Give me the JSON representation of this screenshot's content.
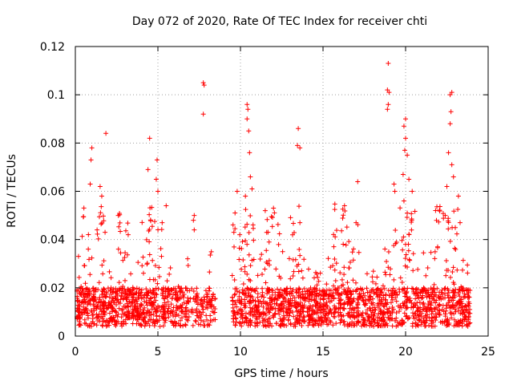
{
  "chart_data": {
    "type": "scatter",
    "title": "Day 072 of 2020, Rate Of TEC Index for receiver chti",
    "xlabel": "GPS time / hours",
    "ylabel": "ROTI / TECUs",
    "xlim": [
      0,
      25
    ],
    "ylim": [
      0,
      0.12
    ],
    "x_ticks": [
      0,
      5,
      10,
      15,
      20,
      25
    ],
    "x_tick_labels": [
      "0",
      "5",
      "10",
      "15",
      "20",
      "25"
    ],
    "y_ticks": [
      0,
      0.02,
      0.04,
      0.06,
      0.08,
      0.1,
      0.12
    ],
    "y_tick_labels": [
      "0",
      "0.02",
      "0.04",
      "0.06",
      "0.08",
      "0.1",
      "0.12"
    ],
    "grid": true,
    "marker": "+",
    "color": "#ff0000",
    "baseline_range": [
      0.004,
      0.02
    ],
    "gaps": [
      [
        8.5,
        9.5
      ]
    ],
    "notable_points": [
      {
        "x": 1.0,
        "y": 0.078
      },
      {
        "x": 0.95,
        "y": 0.073
      },
      {
        "x": 0.9,
        "y": 0.063
      },
      {
        "x": 1.5,
        "y": 0.062
      },
      {
        "x": 1.6,
        "y": 0.058
      },
      {
        "x": 1.85,
        "y": 0.084
      },
      {
        "x": 1.8,
        "y": 0.043
      },
      {
        "x": 2.6,
        "y": 0.05
      },
      {
        "x": 3.2,
        "y": 0.042
      },
      {
        "x": 4.5,
        "y": 0.082
      },
      {
        "x": 4.4,
        "y": 0.069
      },
      {
        "x": 4.95,
        "y": 0.073
      },
      {
        "x": 4.9,
        "y": 0.065
      },
      {
        "x": 5.0,
        "y": 0.06
      },
      {
        "x": 5.5,
        "y": 0.054
      },
      {
        "x": 7.2,
        "y": 0.05
      },
      {
        "x": 7.15,
        "y": 0.048
      },
      {
        "x": 7.2,
        "y": 0.044
      },
      {
        "x": 7.75,
        "y": 0.105
      },
      {
        "x": 7.8,
        "y": 0.104
      },
      {
        "x": 7.75,
        "y": 0.092
      },
      {
        "x": 9.6,
        "y": 0.043
      },
      {
        "x": 9.8,
        "y": 0.06
      },
      {
        "x": 10.4,
        "y": 0.096
      },
      {
        "x": 10.45,
        "y": 0.094
      },
      {
        "x": 10.4,
        "y": 0.09
      },
      {
        "x": 10.5,
        "y": 0.085
      },
      {
        "x": 10.55,
        "y": 0.076
      },
      {
        "x": 10.6,
        "y": 0.066
      },
      {
        "x": 10.3,
        "y": 0.058
      },
      {
        "x": 10.7,
        "y": 0.061
      },
      {
        "x": 11.5,
        "y": 0.052
      },
      {
        "x": 12.0,
        "y": 0.053
      },
      {
        "x": 13.5,
        "y": 0.086
      },
      {
        "x": 13.45,
        "y": 0.079
      },
      {
        "x": 13.6,
        "y": 0.078
      },
      {
        "x": 13.6,
        "y": 0.047
      },
      {
        "x": 16.3,
        "y": 0.054
      },
      {
        "x": 17.1,
        "y": 0.064
      },
      {
        "x": 17.0,
        "y": 0.047
      },
      {
        "x": 18.95,
        "y": 0.113
      },
      {
        "x": 18.9,
        "y": 0.102
      },
      {
        "x": 19.0,
        "y": 0.101
      },
      {
        "x": 18.95,
        "y": 0.096
      },
      {
        "x": 18.9,
        "y": 0.094
      },
      {
        "x": 19.3,
        "y": 0.063
      },
      {
        "x": 19.35,
        "y": 0.06
      },
      {
        "x": 20.0,
        "y": 0.09
      },
      {
        "x": 19.9,
        "y": 0.087
      },
      {
        "x": 20.0,
        "y": 0.082
      },
      {
        "x": 19.95,
        "y": 0.077
      },
      {
        "x": 20.1,
        "y": 0.075
      },
      {
        "x": 19.85,
        "y": 0.067
      },
      {
        "x": 20.2,
        "y": 0.065
      },
      {
        "x": 20.4,
        "y": 0.06
      },
      {
        "x": 19.9,
        "y": 0.056
      },
      {
        "x": 20.1,
        "y": 0.051
      },
      {
        "x": 22.7,
        "y": 0.1
      },
      {
        "x": 22.8,
        "y": 0.101
      },
      {
        "x": 22.75,
        "y": 0.093
      },
      {
        "x": 22.7,
        "y": 0.088
      },
      {
        "x": 22.6,
        "y": 0.076
      },
      {
        "x": 22.8,
        "y": 0.071
      },
      {
        "x": 22.9,
        "y": 0.066
      },
      {
        "x": 22.5,
        "y": 0.062
      },
      {
        "x": 23.2,
        "y": 0.058
      },
      {
        "x": 22.4,
        "y": 0.05
      },
      {
        "x": 23.3,
        "y": 0.047
      }
    ]
  }
}
